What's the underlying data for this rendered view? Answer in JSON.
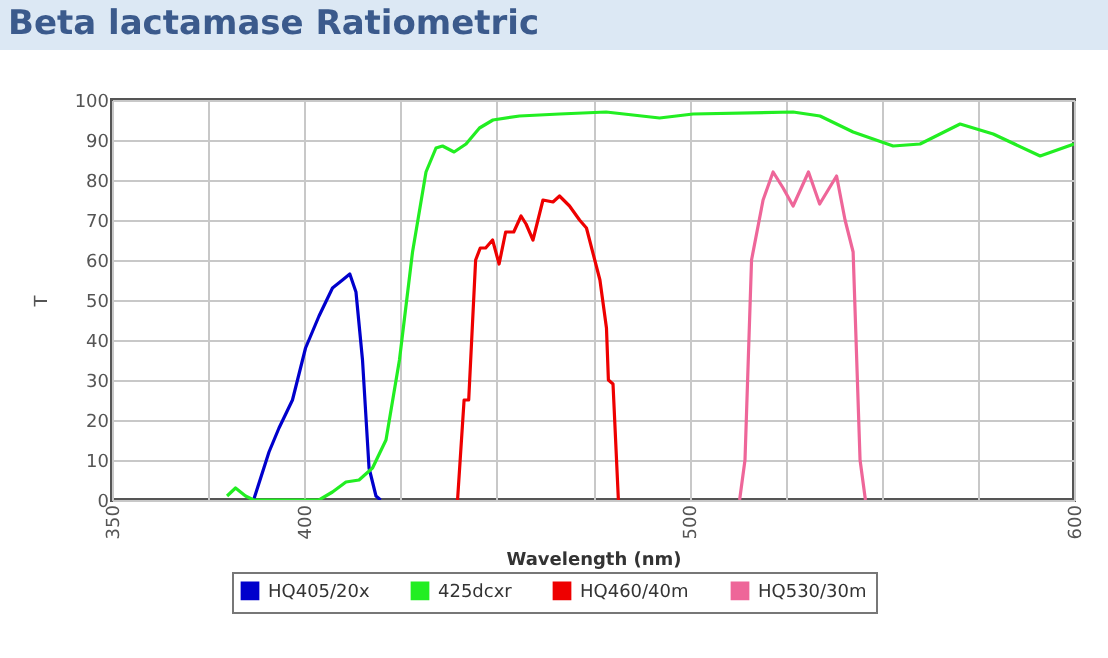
{
  "chart_data": {
    "type": "line",
    "title": "Beta lactamase Ratiometric",
    "xlabel": "Wavelength (nm)",
    "ylabel": "T",
    "xlim": [
      350,
      600
    ],
    "ylim": [
      0,
      100
    ],
    "xticks": [
      350,
      {
        "value": 375,
        "label": null
      },
      400,
      {
        "value": 425,
        "label": null
      },
      {
        "value": 450,
        "label": null
      },
      {
        "value": 475,
        "label": null
      },
      500,
      {
        "value": 525,
        "label": null
      },
      {
        "value": 550,
        "label": null
      },
      {
        "value": 575,
        "label": null
      },
      600
    ],
    "yticks": [
      0,
      10,
      20,
      30,
      40,
      50,
      60,
      70,
      80,
      90,
      100
    ],
    "grid": true,
    "legend": "bottom",
    "marker": "none",
    "line_style": "solid",
    "series": [
      {
        "name": "HQ405/20x",
        "color": "#0000cc",
        "x": [
          386.8,
          390.8,
          393.4,
          396.9,
          400.3,
          403.8,
          407.3,
          409.9,
          411.8,
          413.4,
          415.1,
          416.8,
          418.6,
          419.8
        ],
        "values": [
          0,
          12,
          18,
          25,
          38,
          46,
          53,
          55,
          56.5,
          52,
          35,
          8,
          1,
          0
        ]
      },
      {
        "name": "425dcxr",
        "color": "#22ee22",
        "x": [
          379.9,
          382.1,
          384.7,
          386.8,
          403.8,
          407.3,
          410.8,
          414.2,
          417.7,
          421.2,
          424.7,
          428.1,
          431.6,
          434.2,
          435.9,
          438.9,
          442,
          445.5,
          449,
          455.9,
          466.3,
          478.4,
          492.3,
          501,
          527,
          534,
          542.6,
          553,
          560,
          570.4,
          579,
          591.2,
          600
        ],
        "values": [
          1,
          3,
          1,
          0,
          0,
          2,
          4.5,
          5,
          8,
          15,
          35,
          62,
          82,
          88,
          88.5,
          87,
          89,
          93,
          95,
          96,
          96.5,
          97,
          95.5,
          96.5,
          97,
          96,
          92,
          88.5,
          89,
          94,
          91.5,
          86,
          89
        ]
      },
      {
        "name": "HQ460/40m",
        "color": "#ee0000",
        "x": [
          439.8,
          441.5,
          442.7,
          444.5,
          445.7,
          447.1,
          448.9,
          450.6,
          452.3,
          454.4,
          456.3,
          457.6,
          459.4,
          462,
          464.6,
          466.3,
          468.9,
          471.5,
          473.3,
          476.8,
          478.5,
          479,
          480.2,
          481.6
        ],
        "values": [
          0,
          25,
          25,
          60,
          63,
          63,
          65,
          59,
          67,
          67,
          71,
          69,
          65,
          75,
          74.5,
          76,
          73.5,
          70,
          68,
          55,
          43,
          30,
          29,
          0
        ]
      },
      {
        "name": "HQ530/30m",
        "color": "#ee6699",
        "x": [
          513.1,
          514.5,
          516.2,
          519.2,
          521.8,
          524.4,
          527,
          531,
          533.9,
          538.3,
          540.5,
          542.6,
          544.4,
          545.8
        ],
        "values": [
          0,
          10,
          60,
          75,
          82,
          78,
          73.5,
          82,
          74,
          81,
          70,
          62,
          10,
          0
        ]
      }
    ]
  }
}
